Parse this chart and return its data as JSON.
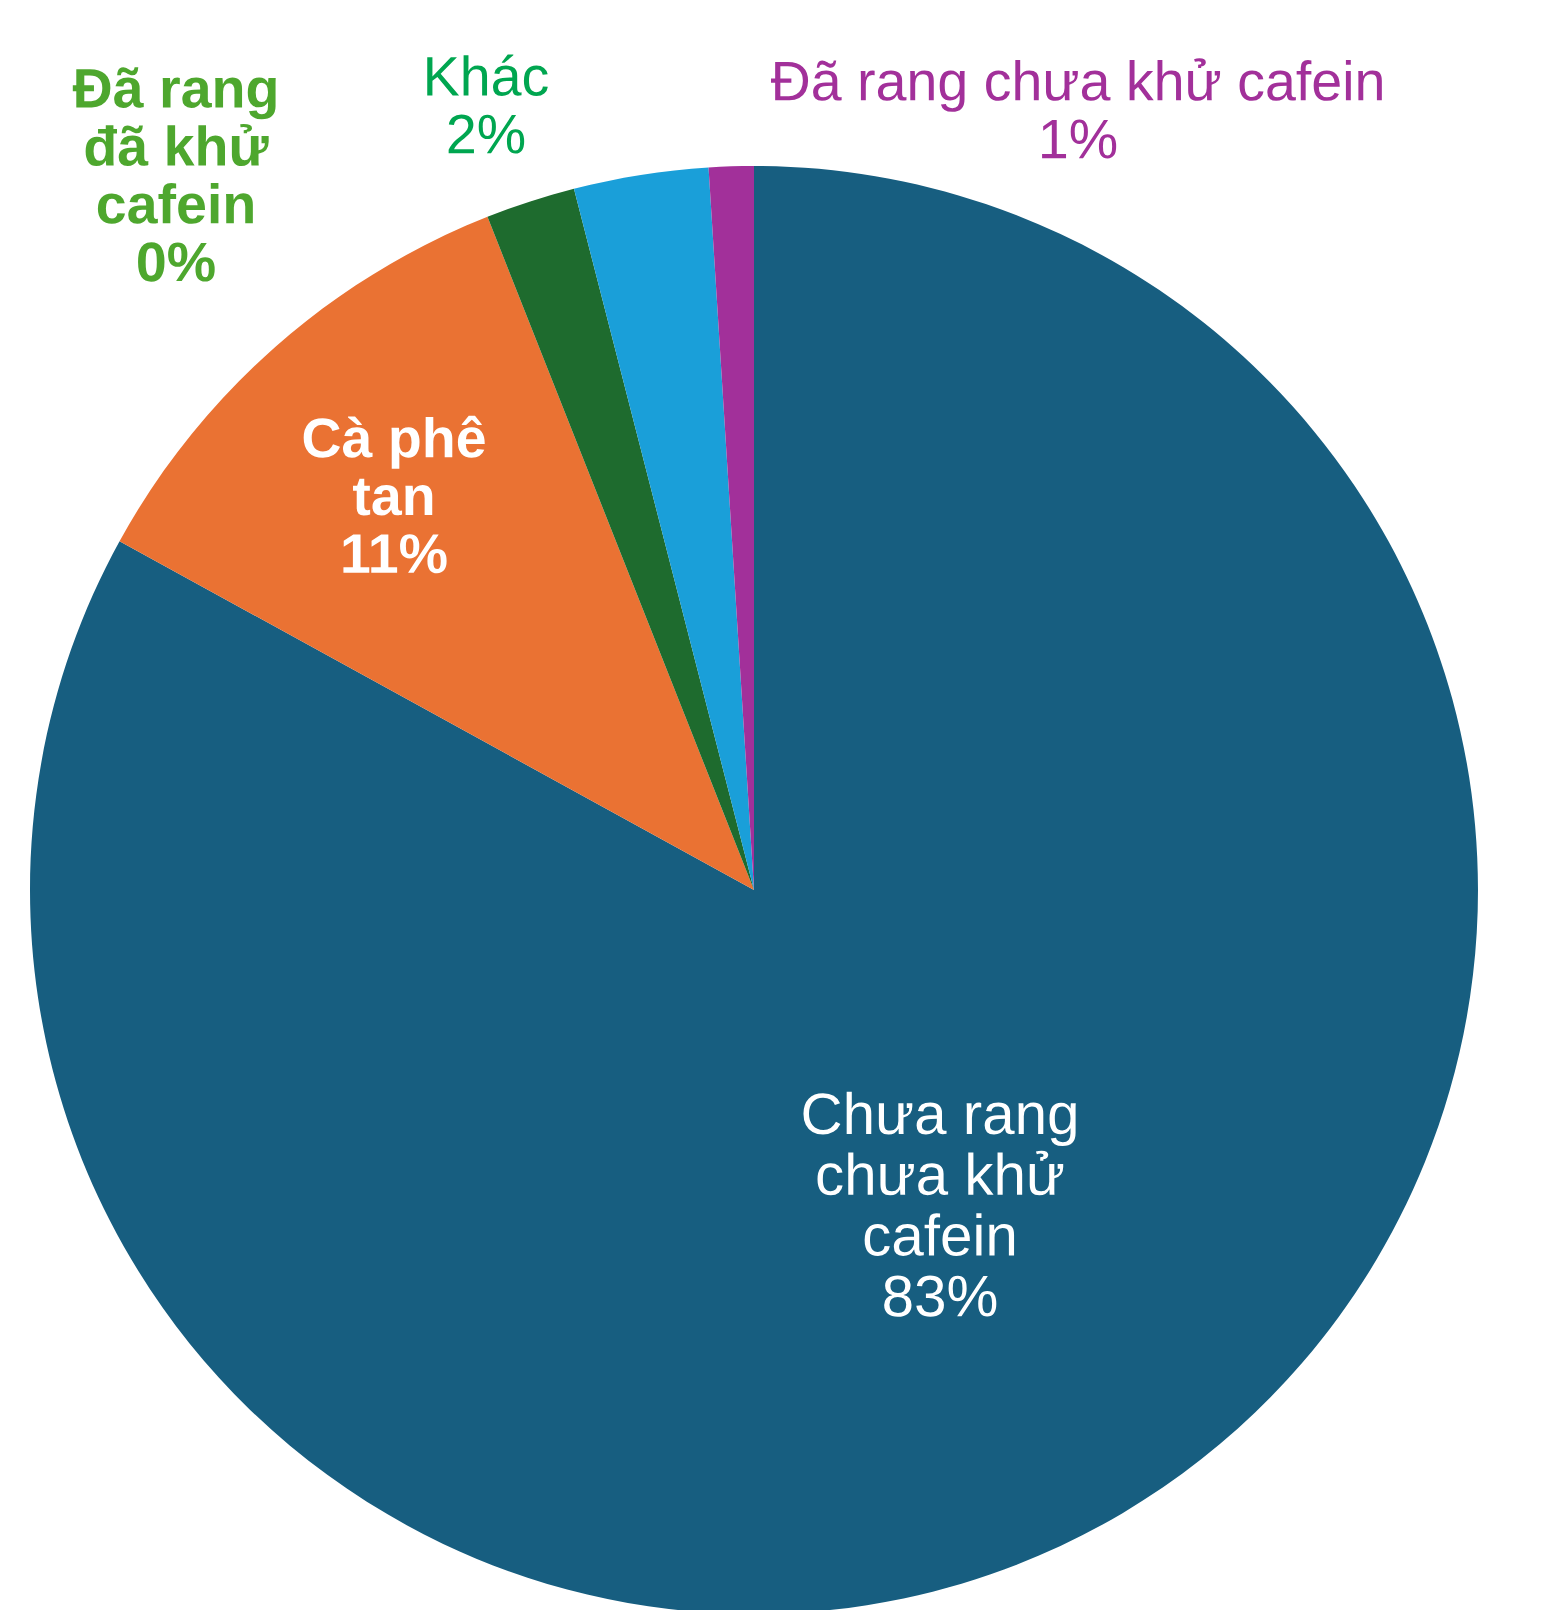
{
  "chart_data": {
    "type": "pie",
    "categories": [
      "Chưa rang\nchưa khử\ncafein",
      "Cà phê\ntan",
      "Đã rang\nđã khử\ncafein",
      "Khác",
      null,
      "Đã rang chưa khử cafein"
    ],
    "values": [
      83,
      11,
      0,
      2,
      3,
      1
    ],
    "value_labels": [
      "83%",
      "11%",
      "0%",
      "2%",
      null,
      "1%"
    ],
    "colors": [
      "#175e80",
      "#ea7233",
      "#4ea72e",
      "#1e6b2e",
      "#1a9fd9",
      "#a2309a"
    ],
    "legend": false
  }
}
